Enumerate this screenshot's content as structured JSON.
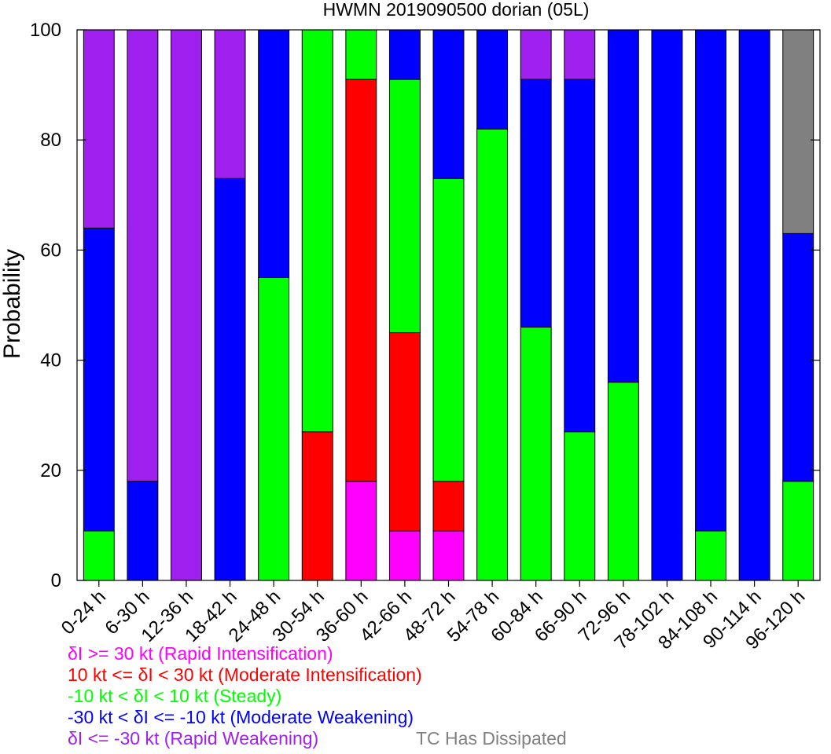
{
  "chart_data": {
    "type": "bar",
    "stacked": true,
    "title": "HWMN 2019090500 dorian (05L)",
    "ylabel": "Probability",
    "xlabel": "",
    "ylim": [
      0,
      100
    ],
    "yticks": [
      0,
      20,
      40,
      60,
      80,
      100
    ],
    "grid": false,
    "categories": [
      "0-24 h",
      "6-30 h",
      "12-36 h",
      "18-42 h",
      "24-48 h",
      "30-54 h",
      "36-60 h",
      "42-66 h",
      "48-72 h",
      "54-78 h",
      "60-84 h",
      "66-90 h",
      "72-96 h",
      "78-102 h",
      "84-108 h",
      "90-114 h",
      "96-120 h"
    ],
    "series": [
      {
        "key": "ri",
        "color": "#ff00ff",
        "values": [
          0,
          0,
          0,
          0,
          0,
          0,
          18,
          9,
          9,
          0,
          0,
          0,
          0,
          0,
          0,
          0,
          0
        ]
      },
      {
        "key": "mi",
        "color": "#ff0000",
        "values": [
          0,
          0,
          0,
          0,
          0,
          27,
          73,
          36,
          9,
          0,
          0,
          0,
          0,
          0,
          0,
          0,
          0
        ]
      },
      {
        "key": "st",
        "color": "#00ff00",
        "values": [
          9,
          0,
          0,
          0,
          55,
          73,
          9,
          46,
          55,
          82,
          46,
          27,
          36,
          0,
          9,
          0,
          18
        ]
      },
      {
        "key": "mw",
        "color": "#0000ff",
        "values": [
          55,
          18,
          0,
          73,
          45,
          0,
          0,
          9,
          27,
          18,
          45,
          64,
          64,
          100,
          91,
          100,
          45
        ]
      },
      {
        "key": "rw",
        "color": "#a020f0",
        "values": [
          36,
          82,
          100,
          27,
          0,
          0,
          0,
          0,
          0,
          0,
          9,
          9,
          0,
          0,
          0,
          0,
          0
        ]
      },
      {
        "key": "td",
        "color": "#808080",
        "values": [
          0,
          0,
          0,
          0,
          0,
          0,
          0,
          0,
          0,
          0,
          0,
          0,
          0,
          0,
          0,
          0,
          37
        ]
      }
    ]
  },
  "legend": {
    "ri": {
      "prefix": "δI",
      "rest": " >= 30 kt (Rapid Intensification)",
      "color": "#ff00ff"
    },
    "mi": {
      "prefix": "10 kt <= ",
      "sym": "δI",
      "rest": " < 30 kt (Moderate Intensification)",
      "color": "#ff0000"
    },
    "st": {
      "prefix": "-10 kt < ",
      "sym": "δI",
      "rest": " < 10 kt (Steady)",
      "color": "#00ff00"
    },
    "mw": {
      "prefix": "-30 kt < ",
      "sym": "δI",
      "rest": " <= -10 kt (Moderate Weakening)",
      "color": "#0000ff"
    },
    "rw": {
      "prefix": "δI",
      "rest": " <= -30 kt (Rapid Weakening)",
      "color": "#a020f0"
    },
    "td": {
      "text": "TC Has Dissipated",
      "color": "#808080"
    }
  }
}
